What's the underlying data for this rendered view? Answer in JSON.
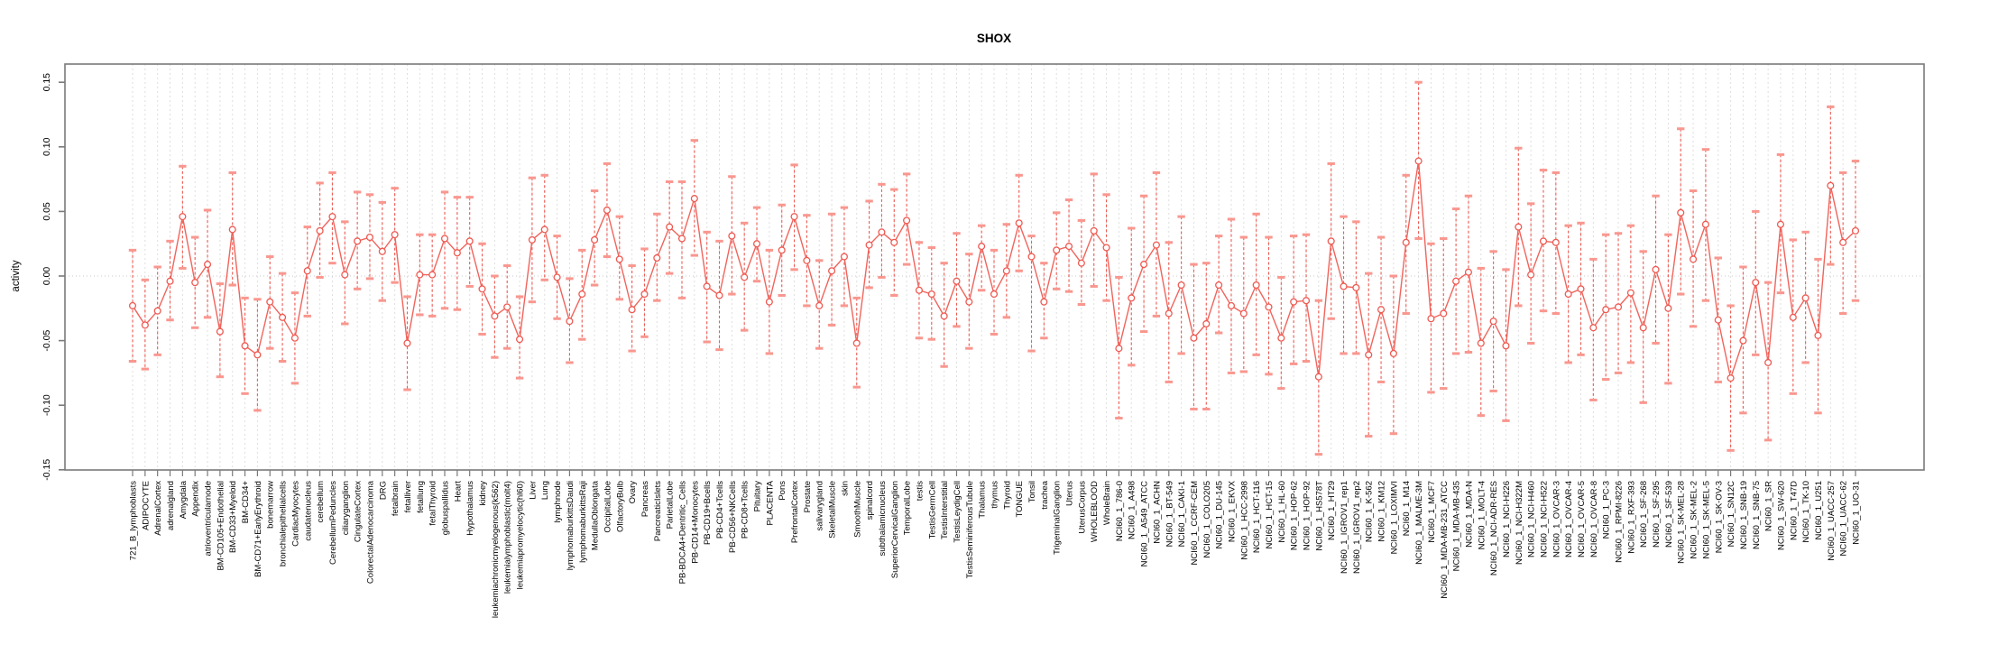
{
  "header": {
    "title": "SHOX"
  },
  "axes": {
    "y_label": "activity",
    "y_tick_labels": [
      "-0.15",
      "-0.10",
      "-0.05",
      "0.00",
      "0.05",
      "0.10",
      "0.15"
    ]
  },
  "chart_data": {
    "type": "line",
    "subtype": "points-with-error-bars",
    "title": "SHOX",
    "xlabel": "",
    "ylabel": "activity",
    "ylim": [
      -0.165,
      0.165
    ],
    "y_ticks": [
      -0.15,
      -0.1,
      -0.05,
      0,
      0.05,
      0.1,
      0.15
    ],
    "grid": "vertical dashed line per category; dotted horizontal line at 0",
    "legend": "none",
    "colors": {
      "point": "#ee5a52",
      "line": "#f0645c",
      "error_line": "#ef5a52",
      "error_cap": "#f9978f",
      "grid": "#dedede",
      "zero_line": "#c9c9c9",
      "axis": "#7a7a7a"
    },
    "categories": [
      "721_B_lymphoblasts",
      "ADIPOCYTE",
      "AdrenalCortex",
      "adrenalgland",
      "Amygdala",
      "Appendix",
      "atrioventricularnode",
      "BM-CD105+Endothelial",
      "BM-CD33+Myeloid",
      "BM-CD34+",
      "BM-CD71+EarlyErythroid",
      "bonemarrow",
      "bronchialepithelialcells",
      "CardiacMyocytes",
      "caudatenucleus",
      "cerebellum",
      "CerebellumPeduncles",
      "ciliaryganglion",
      "CingulateCortex",
      "ColorectalAdenocarcinoma",
      "DRG",
      "fetalbrain",
      "fetalliver",
      "fetallung",
      "fetalThyroid",
      "globuspallidus",
      "Heart",
      "Hypothalamus",
      "kidney",
      "leukemiachronicmyelogenous(k562)",
      "leukemialymphoblastic(molt4)",
      "leukemiapromyelocytic(hl60)",
      "Liver",
      "Lung",
      "lymphnode",
      "lymphomaburkittsDaudi",
      "lymphomaburkittsRaji",
      "MedullaOblongata",
      "OccipitalLobe",
      "OlfactoryBulb",
      "Ovary",
      "Pancreas",
      "PancreaticIslets",
      "ParietalLobe",
      "PB-BDCA4+Dentritic_Cells",
      "PB-CD14+Monocytes",
      "PB-CD19+Bcells",
      "PB-CD4+Tcells",
      "PB-CD56+NKCells",
      "PB-CD8+Tcells",
      "Pituitary",
      "PLACENTA",
      "Pons",
      "PrefrontalCortex",
      "Prostate",
      "salivarygland",
      "SkeletalMuscle",
      "skin",
      "SmoothMuscle",
      "spinalcord",
      "subthalamicnucleus",
      "SuperiorCervicalGanglion",
      "TemporalLobe",
      "testis",
      "TestisGermCell",
      "TestisInterstitial",
      "TestisLeydigCell",
      "TestisSeminiferousTubule",
      "Thalamus",
      "thymus",
      "Thyroid",
      "TONGUE",
      "Tonsil",
      "trachea",
      "TrigeminalGanglion",
      "Uterus",
      "UterusCorpus",
      "WHOLEBLOOD",
      "WholeBrain",
      "NCI60_1_786-0",
      "NCI60_1_A498",
      "NCI60_1_A549_ATCC",
      "NCI60_1_ACHN",
      "NCI60_1_BT-549",
      "NCI60_1_CAKI-1",
      "NCI60_1_CCRF-CEM",
      "NCI60_1_COLO205",
      "NCI60_1_DU-145",
      "NCI60_1_EKVX",
      "NCI60_1_HCC-2998",
      "NCI60_1_HCT-116",
      "NCI60_1_HCT-15",
      "NCI60_1_HL-60",
      "NCI60_1_HOP-62",
      "NCI60_1_HOP-92",
      "NCI60_1_HS578T",
      "NCI60_1_HT29",
      "NCI60_1_IGROV1_rep1",
      "NCI60_1_IGROV1_rep2",
      "NCI60_1_K-562",
      "NCI60_1_KM12",
      "NCI60_1_LOXIMVI",
      "NCI60_1_M14",
      "NCI60_1_MALME-3M",
      "NCI60_1_MCF7",
      "NCI60_1_MDA-MB-231_ATCC",
      "NCI60_1_MDA-MB-435",
      "NCI60_1_MDA-N",
      "NCI60_1_MOLT-4",
      "NCI60_1_NCI-ADR-RES",
      "NCI60_1_NCI-H226",
      "NCI60_1_NCI-H322M",
      "NCI60_1_NCI-H460",
      "NCI60_1_NCI-H522",
      "NCI60_1_OVCAR-3",
      "NCI60_1_OVCAR-4",
      "NCI60_1_OVCAR-5",
      "NCI60_1_OVCAR-8",
      "NCI60_1_PC-3",
      "NCI60_1_RPMI-8226",
      "NCI60_1_RXF-393",
      "NCI60_1_SF-268",
      "NCI60_1_SF-295",
      "NCI60_1_SF-539",
      "NCI60_1_SK-MEL-28",
      "NCI60_1_SK-MEL-2",
      "NCI60_1_SK-MEL-5",
      "NCI60_1_SK-OV-3",
      "NCI60_1_SN12C",
      "NCI60_1_SNB-19",
      "NCI60_1_SNB-75",
      "NCI60_1_SR",
      "NCI60_1_SW-620",
      "NCI60_1_T47D",
      "NCI60_1_TK-10",
      "NCI60_1_U251",
      "NCI60_1_UACC-257",
      "NCI60_1_UACC-62",
      "NCI60_1_UO-31"
    ],
    "series": [
      {
        "name": "activity_mean",
        "values": [
          -0.023,
          -0.038,
          -0.027,
          -0.004,
          0.046,
          -0.005,
          0.009,
          -0.043,
          0.036,
          -0.054,
          -0.061,
          -0.02,
          -0.032,
          -0.048,
          0.004,
          0.035,
          0.046,
          0.001,
          0.027,
          0.03,
          0.019,
          0.032,
          -0.052,
          0.001,
          0.001,
          0.029,
          0.018,
          0.027,
          -0.01,
          -0.031,
          -0.024,
          -0.049,
          0.028,
          0.036,
          -0.001,
          -0.035,
          -0.014,
          0.028,
          0.051,
          0.013,
          -0.026,
          -0.014,
          0.014,
          0.038,
          0.029,
          0.06,
          -0.008,
          -0.015,
          0.031,
          -0.001,
          0.025,
          -0.02,
          0.02,
          0.046,
          0.012,
          -0.023,
          0.004,
          0.015,
          -0.052,
          0.024,
          0.034,
          0.026,
          0.043,
          -0.011,
          -0.014,
          -0.031,
          -0.004,
          -0.02,
          0.023,
          -0.014,
          0.004,
          0.041,
          0.015,
          -0.02,
          0.02,
          0.023,
          0.01,
          0.035,
          0.022,
          -0.056,
          -0.017,
          0.009,
          0.024,
          -0.029,
          -0.007,
          -0.048,
          -0.037,
          -0.007,
          -0.023,
          -0.029,
          -0.007,
          -0.024,
          -0.048,
          -0.02,
          -0.019,
          -0.078,
          0.027,
          -0.008,
          -0.009,
          -0.061,
          -0.026,
          -0.06,
          0.026,
          0.089,
          -0.033,
          -0.029,
          -0.004,
          0.003,
          -0.052,
          -0.035,
          -0.054,
          0.038,
          0.001,
          0.027,
          0.026,
          -0.014,
          -0.01,
          -0.04,
          -0.026,
          -0.024,
          -0.013,
          -0.04,
          0.005,
          -0.025,
          0.049,
          0.013,
          0.04,
          -0.034,
          -0.079,
          -0.05,
          -0.005,
          -0.067,
          0.04,
          -0.032,
          -0.017,
          -0.046,
          0.07,
          0.026,
          0.035
        ]
      },
      {
        "name": "lower",
        "values": [
          -0.066,
          -0.072,
          -0.061,
          -0.034,
          0.006,
          -0.04,
          -0.032,
          -0.078,
          -0.007,
          -0.091,
          -0.104,
          -0.056,
          -0.066,
          -0.083,
          -0.031,
          -0.001,
          0.01,
          -0.037,
          -0.01,
          -0.002,
          -0.019,
          -0.005,
          -0.088,
          -0.03,
          -0.031,
          -0.025,
          -0.026,
          -0.008,
          -0.045,
          -0.063,
          -0.056,
          -0.079,
          -0.02,
          -0.003,
          -0.033,
          -0.067,
          -0.049,
          -0.007,
          0.015,
          -0.018,
          -0.058,
          -0.047,
          -0.019,
          0.002,
          -0.017,
          0.016,
          -0.051,
          -0.057,
          -0.014,
          -0.042,
          -0.004,
          -0.06,
          -0.015,
          0.005,
          -0.023,
          -0.056,
          -0.038,
          -0.023,
          -0.086,
          -0.009,
          -0.001,
          -0.015,
          0.009,
          -0.048,
          -0.049,
          -0.07,
          -0.039,
          -0.056,
          -0.011,
          -0.045,
          -0.032,
          0.004,
          -0.058,
          -0.048,
          -0.01,
          -0.012,
          -0.022,
          -0.008,
          -0.019,
          -0.11,
          -0.069,
          -0.043,
          -0.031,
          -0.082,
          -0.06,
          -0.103,
          -0.103,
          -0.044,
          -0.075,
          -0.074,
          -0.061,
          -0.076,
          -0.087,
          -0.068,
          -0.066,
          -0.138,
          -0.033,
          -0.06,
          -0.06,
          -0.124,
          -0.082,
          -0.122,
          -0.029,
          0.029,
          -0.09,
          -0.087,
          -0.06,
          -0.059,
          -0.108,
          -0.089,
          -0.112,
          -0.023,
          -0.052,
          -0.027,
          -0.029,
          -0.067,
          -0.061,
          -0.096,
          -0.08,
          -0.075,
          -0.067,
          -0.098,
          -0.052,
          -0.083,
          -0.014,
          -0.039,
          -0.019,
          -0.082,
          -0.135,
          -0.106,
          -0.061,
          -0.127,
          -0.013,
          -0.091,
          -0.067,
          -0.106,
          0.009,
          -0.029,
          -0.019
        ]
      },
      {
        "name": "upper",
        "values": [
          0.02,
          -0.003,
          0.007,
          0.027,
          0.085,
          0.03,
          0.051,
          -0.006,
          0.08,
          -0.017,
          -0.018,
          0.015,
          0.002,
          -0.013,
          0.038,
          0.072,
          0.08,
          0.042,
          0.065,
          0.063,
          0.057,
          0.068,
          -0.016,
          0.032,
          0.032,
          0.065,
          0.061,
          0.061,
          0.025,
          0.0,
          0.008,
          -0.016,
          0.076,
          0.078,
          0.031,
          -0.002,
          0.02,
          0.066,
          0.087,
          0.046,
          0.008,
          0.021,
          0.048,
          0.073,
          0.073,
          0.105,
          0.034,
          0.027,
          0.077,
          0.041,
          0.053,
          0.02,
          0.055,
          0.086,
          0.047,
          0.012,
          0.048,
          0.053,
          -0.017,
          0.058,
          0.071,
          0.067,
          0.079,
          0.026,
          0.022,
          0.01,
          0.033,
          0.017,
          0.039,
          0.02,
          0.04,
          0.078,
          0.031,
          0.01,
          0.049,
          0.059,
          0.043,
          0.079,
          0.063,
          -0.001,
          0.037,
          0.062,
          0.08,
          0.026,
          0.046,
          0.009,
          0.01,
          0.031,
          0.044,
          0.03,
          0.048,
          0.03,
          -0.001,
          0.031,
          0.032,
          -0.019,
          0.087,
          0.046,
          0.042,
          0.002,
          0.03,
          0.0,
          0.078,
          0.15,
          0.025,
          0.029,
          0.052,
          0.062,
          0.006,
          0.019,
          0.005,
          0.099,
          0.056,
          0.082,
          0.08,
          0.039,
          0.041,
          0.013,
          0.032,
          0.033,
          0.039,
          0.019,
          0.062,
          0.032,
          0.114,
          0.066,
          0.098,
          0.014,
          -0.023,
          0.007,
          0.05,
          -0.005,
          0.094,
          0.028,
          0.034,
          0.013,
          0.131,
          0.08,
          0.089
        ]
      }
    ]
  }
}
